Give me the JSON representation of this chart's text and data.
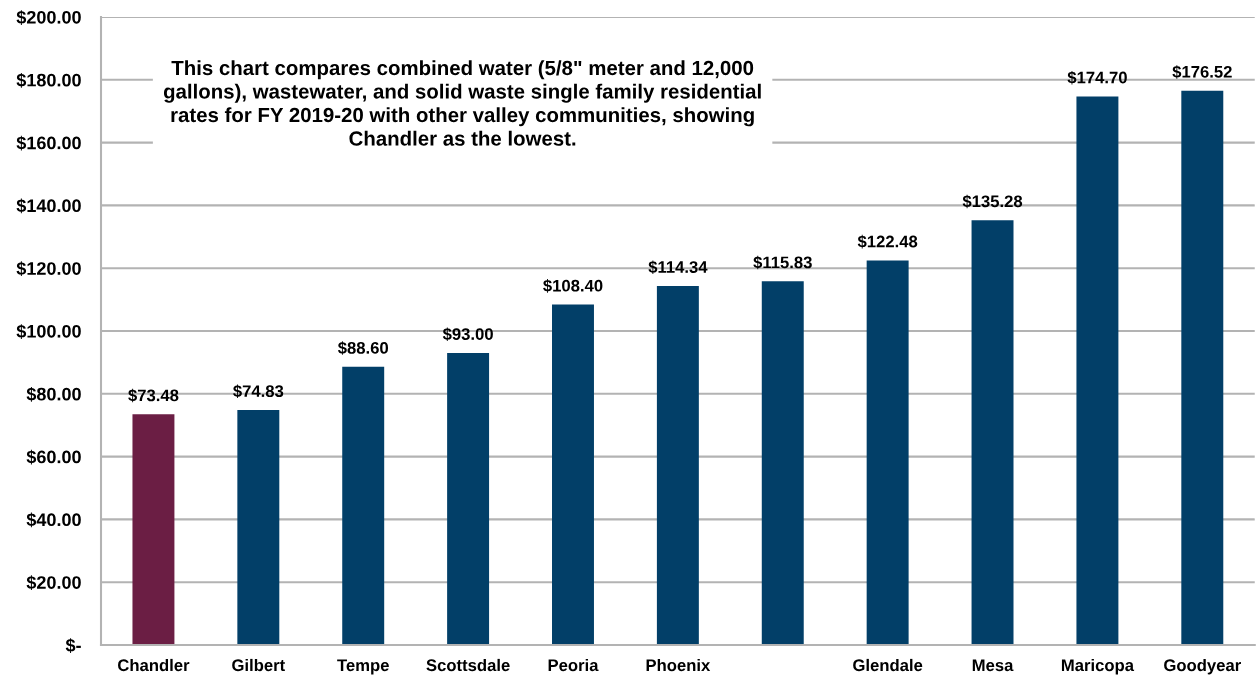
{
  "chart_data": {
    "type": "bar",
    "annotations": [
      "This chart compares combined water (5/8\" meter and 12,000 gallons), wastewater, and solid waste single family residential rates for FY 2019-20 with other valley communities, showing Chandler as the lowest."
    ],
    "categories": [
      "Chandler",
      "Gilbert",
      "Tempe",
      "Scottsdale",
      "Peoria",
      "Phoenix",
      null,
      "Glendale",
      "Mesa",
      "Maricopa",
      "Goodyear"
    ],
    "values": [
      73.48,
      74.83,
      88.6,
      93.0,
      108.4,
      114.34,
      115.83,
      122.48,
      135.28,
      174.7,
      176.52
    ],
    "colors": [
      "#6b1e44",
      "#023f68",
      "#023f68",
      "#023f68",
      "#023f68",
      "#023f68",
      "#023f68",
      "#023f68",
      "#023f68",
      "#023f68",
      "#023f68"
    ],
    "value_labels": [
      "$73.48",
      "$74.83",
      "$88.60",
      "$93.00",
      "$108.40",
      "$114.34",
      "$115.83",
      "$122.48",
      "$135.28",
      "$174.70",
      "$176.52"
    ],
    "ylim": [
      0,
      200
    ],
    "yticks": [
      {
        "value": 0,
        "label": "$-"
      },
      {
        "value": 20,
        "label": "$20.00"
      },
      {
        "value": 40,
        "label": "$40.00"
      },
      {
        "value": 60,
        "label": "$60.00"
      },
      {
        "value": 80,
        "label": "$80.00"
      },
      {
        "value": 100,
        "label": "$100.00"
      },
      {
        "value": 120,
        "label": "$120.00"
      },
      {
        "value": 140,
        "label": "$140.00"
      },
      {
        "value": 160,
        "label": "$160.00"
      },
      {
        "value": 180,
        "label": "$180.00"
      },
      {
        "value": 200,
        "label": "$200.00"
      }
    ],
    "grid": "y"
  }
}
